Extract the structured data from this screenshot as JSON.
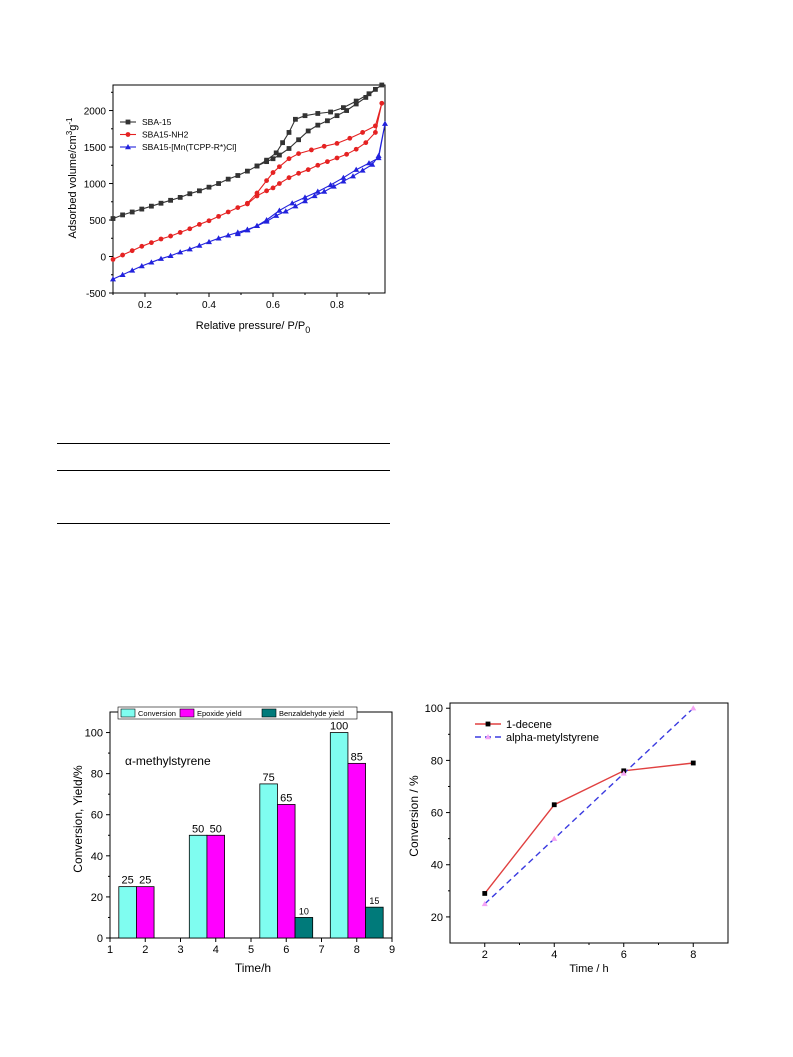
{
  "charts": {
    "isotherm": {
      "ylabel": "Adsorbed volume/cm3g-1",
      "xlabel": "Relative pressure/ P/P0",
      "xticks": [
        "0.2",
        "0.4",
        "0.6",
        "0.8"
      ],
      "yticks": [
        "-500",
        "0",
        "500",
        "1000",
        "1500",
        "2000"
      ],
      "legend": [
        "SBA-15",
        "SBA15-NH2",
        "SBA15-[Mn(TCPP-R*)Cl]"
      ]
    },
    "bar": {
      "annotation": "α-methylstyrene",
      "ylabel": "Conversion, Yield/%",
      "xlabel": "Time/h",
      "legend": [
        "Conversion",
        "Epoxide yield",
        "Benzaldehyde yield"
      ],
      "xticks": [
        "1",
        "2",
        "3",
        "4",
        "5",
        "6",
        "7",
        "8",
        "9"
      ],
      "yticks": [
        "0",
        "20",
        "40",
        "60",
        "80",
        "100"
      ]
    },
    "conversion": {
      "ylabel": "Conversion / %",
      "xlabel": "Time / h",
      "legend": [
        "1-decene",
        "alpha-metylstyrene"
      ],
      "xticks": [
        "2",
        "4",
        "6",
        "8"
      ],
      "yticks": [
        "20",
        "40",
        "60",
        "80",
        "100"
      ]
    }
  },
  "chart_data": [
    {
      "type": "line",
      "xlabel": "Relative pressure/ P/P0",
      "ylabel": "Adsorbed volume/cm3g-1",
      "xlim": [
        0.1,
        0.95
      ],
      "ylim": [
        -500,
        2350
      ],
      "legend_position": "top-left",
      "grid": false,
      "colors": [
        "#333333",
        "#e52222",
        "#2222dd"
      ],
      "series": [
        {
          "name": "SBA-15",
          "marker": "square",
          "x": [
            0.1,
            0.13,
            0.16,
            0.19,
            0.22,
            0.25,
            0.28,
            0.31,
            0.34,
            0.37,
            0.4,
            0.43,
            0.46,
            0.49,
            0.52,
            0.55,
            0.58,
            0.6,
            0.62,
            0.65,
            0.68,
            0.71,
            0.74,
            0.77,
            0.8,
            0.83,
            0.86,
            0.89,
            0.92,
            0.94,
            0.9,
            0.86,
            0.82,
            0.78,
            0.74,
            0.7,
            0.67,
            0.65,
            0.63,
            0.61,
            0.58,
            0.55
          ],
          "y": [
            520,
            570,
            610,
            650,
            690,
            730,
            770,
            810,
            860,
            900,
            950,
            1000,
            1060,
            1110,
            1170,
            1240,
            1300,
            1340,
            1390,
            1480,
            1600,
            1720,
            1800,
            1860,
            1930,
            2000,
            2090,
            2180,
            2290,
            2350,
            2230,
            2130,
            2040,
            1980,
            1960,
            1930,
            1880,
            1700,
            1560,
            1420,
            1320,
            1240
          ]
        },
        {
          "name": "SBA15-NH2",
          "marker": "circle",
          "x": [
            0.1,
            0.13,
            0.16,
            0.19,
            0.22,
            0.25,
            0.28,
            0.31,
            0.34,
            0.37,
            0.4,
            0.43,
            0.46,
            0.49,
            0.52,
            0.55,
            0.58,
            0.6,
            0.62,
            0.65,
            0.68,
            0.71,
            0.74,
            0.77,
            0.8,
            0.83,
            0.86,
            0.89,
            0.92,
            0.94,
            0.92,
            0.88,
            0.84,
            0.8,
            0.76,
            0.72,
            0.68,
            0.65,
            0.62,
            0.6,
            0.58,
            0.55,
            0.52
          ],
          "y": [
            -40,
            20,
            80,
            140,
            190,
            240,
            280,
            330,
            380,
            440,
            490,
            550,
            610,
            670,
            720,
            830,
            900,
            940,
            1000,
            1080,
            1140,
            1190,
            1250,
            1300,
            1350,
            1400,
            1470,
            1560,
            1700,
            2100,
            1790,
            1700,
            1620,
            1550,
            1510,
            1460,
            1410,
            1340,
            1230,
            1150,
            1040,
            870,
            730
          ]
        },
        {
          "name": "SBA15-[Mn(TCPP-R*)Cl]",
          "marker": "triangle",
          "x": [
            0.1,
            0.13,
            0.16,
            0.19,
            0.22,
            0.25,
            0.28,
            0.31,
            0.34,
            0.37,
            0.4,
            0.43,
            0.46,
            0.49,
            0.52,
            0.55,
            0.58,
            0.61,
            0.64,
            0.67,
            0.7,
            0.73,
            0.76,
            0.79,
            0.82,
            0.85,
            0.88,
            0.91,
            0.93,
            0.95,
            0.93,
            0.9,
            0.86,
            0.82,
            0.78,
            0.74,
            0.7,
            0.66,
            0.62,
            0.58,
            0.55,
            0.52,
            0.49
          ],
          "y": [
            -310,
            -250,
            -190,
            -130,
            -80,
            -30,
            10,
            60,
            100,
            150,
            200,
            250,
            290,
            330,
            370,
            420,
            480,
            560,
            620,
            690,
            760,
            830,
            890,
            960,
            1030,
            1100,
            1180,
            1260,
            1380,
            1820,
            1350,
            1280,
            1190,
            1080,
            980,
            890,
            810,
            730,
            630,
            500,
            420,
            360,
            310
          ]
        }
      ]
    },
    {
      "type": "bar",
      "title": "α-methylstyrene",
      "xlabel": "Time/h",
      "ylabel": "Conversion, Yield/%",
      "categories": [
        "2",
        "4",
        "6",
        "8"
      ],
      "xlim": [
        1,
        9
      ],
      "ylim": [
        0,
        110
      ],
      "legend_position": "top",
      "grid": false,
      "colors": [
        "#7ffdf0",
        "#ff00ff",
        "#007a7a"
      ],
      "series": [
        {
          "name": "Conversion",
          "values": [
            25,
            50,
            75,
            100
          ]
        },
        {
          "name": "Epoxide yield",
          "values": [
            25,
            50,
            65,
            85
          ]
        },
        {
          "name": "Benzaldehyde yield",
          "values": [
            0,
            0,
            10,
            15
          ]
        }
      ],
      "data_labels": [
        [
          "25",
          "50",
          "75",
          "100"
        ],
        [
          "25",
          "50",
          "65",
          "85"
        ],
        [
          "",
          "",
          "10",
          "15"
        ]
      ]
    },
    {
      "type": "line",
      "xlabel": "Time / h",
      "ylabel": "Conversion / %",
      "xlim": [
        1,
        9
      ],
      "ylim": [
        10,
        102
      ],
      "legend_position": "top-left",
      "grid": false,
      "colors": [
        "#e04040",
        "#3a3ae0"
      ],
      "x": [
        2,
        4,
        6,
        8
      ],
      "series": [
        {
          "name": "1-decene",
          "values": [
            29,
            63,
            76,
            79
          ],
          "marker": "square",
          "style": "solid"
        },
        {
          "name": "alpha-metylstyrene",
          "values": [
            25,
            50,
            75,
            100
          ],
          "marker": "triangle",
          "style": "dashed",
          "marker_color": "#f5a3f5"
        }
      ]
    }
  ]
}
